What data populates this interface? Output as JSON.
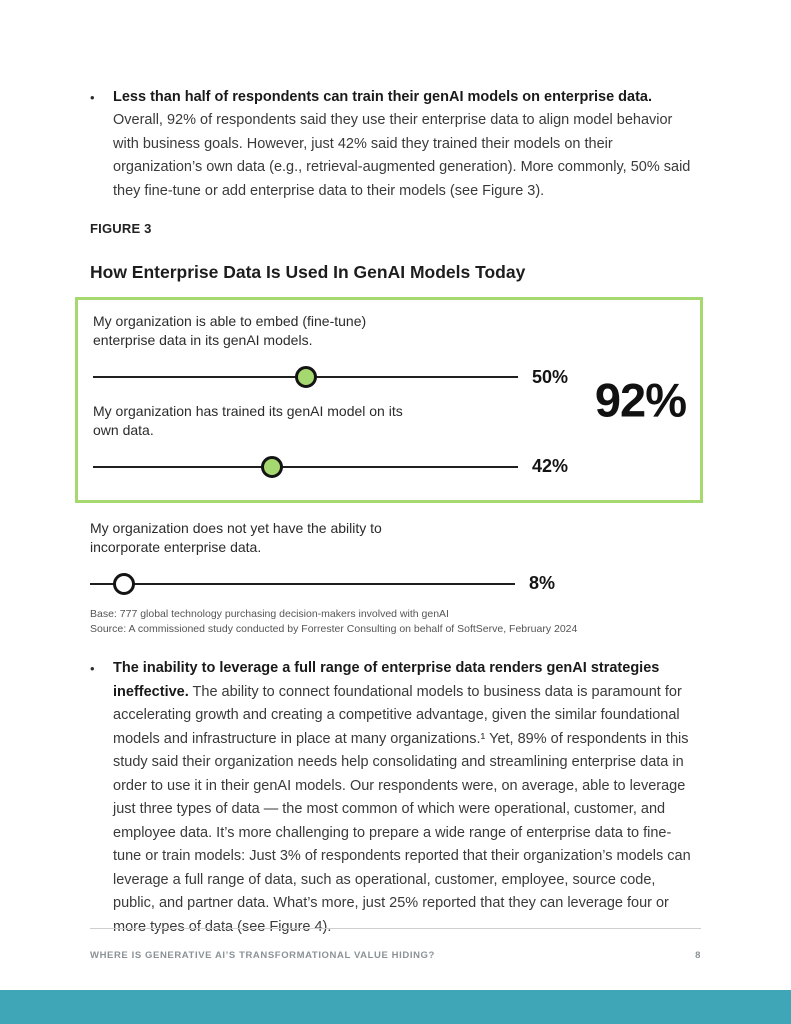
{
  "bullets": [
    {
      "marker": "•",
      "lead": "Less than half of respondents can train their genAI models on enterprise data.",
      "body": " Overall, 92% of respondents said they use their enterprise data to align model behavior with business goals. However, just 42% said they trained their models on their organization’s own data (e.g., retrieval-augmented generation). More commonly, 50% said they fine-tune or add enterprise data to their models (see Figure 3)."
    },
    {
      "marker": "•",
      "lead": "The inability to leverage a full range of enterprise data renders genAI strategies ineffective.",
      "body": " The ability to connect foundational models to business data is paramount for accelerating growth and creating a competitive advantage, given the similar foundational models and infrastructure in place at many organizations.¹ Yet, 89% of respondents in this study said their organization needs help consolidating and streamlining enterprise data in order to use it in their genAI models. Our respondents were, on average, able to leverage just three types of data — the most common of which were operational, customer, and employee data. It’s more challenging to prepare a wide range of enterprise data to fine-tune or train models: Just 3% of respondents reported that their organization’s models can leverage a full range of data, such as operational, customer, employee, source code, public, and partner data. What’s more, just 25% reported that they can leverage four or more types of data (see Figure 4)."
    }
  ],
  "figure": {
    "label": "FIGURE 3",
    "title": "How Enterprise Data Is Used In GenAI Models Today",
    "base_note": "Base: 777 global technology purchasing decision-makers involved with genAI",
    "source_note": "Source: A commissioned study conducted by Forrester Consulting on behalf of SoftServe, February 2024"
  },
  "chart_data": {
    "type": "scatter",
    "subtype": "dot-plot",
    "title": "How Enterprise Data Is Used In GenAI Models Today",
    "axis_range": [
      0,
      100
    ],
    "items": [
      {
        "label": "My organization is able to embed (fine-tune) enterprise data in its genAI models.",
        "value": 50,
        "value_label": "50%",
        "dot_style": "filled"
      },
      {
        "label": "My organization has trained its genAI model on its own data.",
        "value": 42,
        "value_label": "42%",
        "dot_style": "filled"
      },
      {
        "label": "My organization does not yet have the ability to incorporate enterprise data.",
        "value": 8,
        "value_label": "8%",
        "dot_style": "open"
      }
    ],
    "callout_value": "92%",
    "colors": {
      "dot_green": "#a5d86e",
      "box_border": "#a5d86e",
      "line": "#1f1f1f",
      "bottom_bar": "#3ea6b6"
    }
  },
  "footer": {
    "left": "WHERE IS GENERATIVE AI’S TRANSFORMATIONAL VALUE HIDING?",
    "page_number": "8"
  }
}
